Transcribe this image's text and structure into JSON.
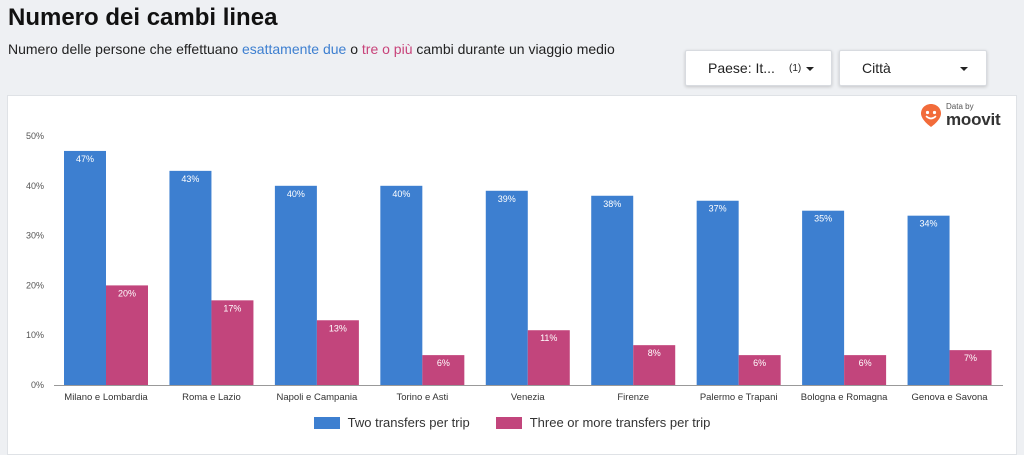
{
  "header": {
    "title": "Numero dei cambi linea",
    "subtitle_prefix": "Numero delle persone che effettuano",
    "subtitle_blue": "esattamente due",
    "subtitle_mid": "o",
    "subtitle_pink": "tre o più",
    "subtitle_suffix": "cambi durante un viaggio medio"
  },
  "filters": {
    "country_label": "Paese: It...",
    "country_count": "(1)",
    "city_label": "Città"
  },
  "logo": {
    "small_text": "Data by",
    "brand": "moovit"
  },
  "colors": {
    "series_two": "#3d7fd0",
    "series_three": "#c2457c",
    "accent_blue": "#3d7fd0",
    "accent_pink": "#c8437a",
    "logo_orange": "#f26b3a"
  },
  "chart_data": {
    "type": "bar",
    "categories": [
      "Milano e Lombardia",
      "Roma e Lazio",
      "Napoli e Campania",
      "Torino e Asti",
      "Venezia",
      "Firenze",
      "Palermo e Trapani",
      "Bologna e Romagna",
      "Genova e Savona"
    ],
    "series": [
      {
        "name": "Two transfers per trip",
        "values": [
          47,
          43,
          40,
          40,
          39,
          38,
          37,
          35,
          34
        ]
      },
      {
        "name": "Three or more transfers per trip",
        "values": [
          20,
          17,
          13,
          6,
          11,
          8,
          6,
          6,
          7
        ]
      }
    ],
    "y_ticks": [
      "0%",
      "10%",
      "20%",
      "30%",
      "40%",
      "50%"
    ],
    "ylim": [
      0,
      50
    ],
    "value_suffix": "%",
    "legend_position": "bottom",
    "grid": false
  }
}
